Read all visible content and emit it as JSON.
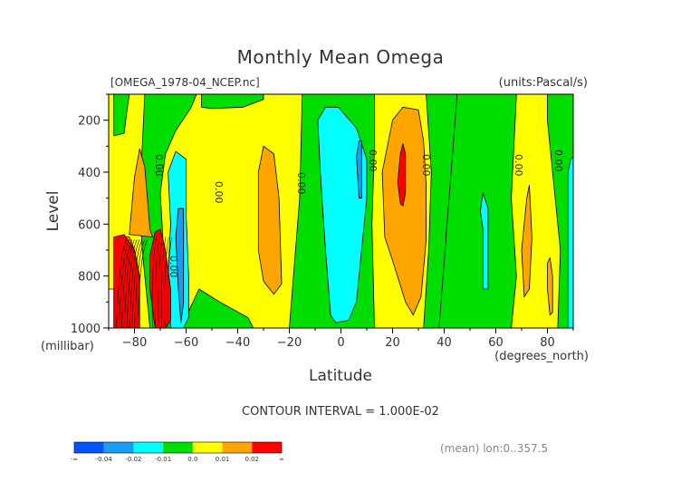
{
  "chart_data": {
    "type": "heatmap",
    "title": "Monthly Mean Omega",
    "file_label": "[OMEGA_1978-04_NCEP.nc]",
    "units_label": "(units:Pascal/s)",
    "xlabel": "Latitude",
    "xunits": "(degrees_north)",
    "ylabel": "Level",
    "yunits": "(millibar)",
    "xlim": [
      -90,
      90
    ],
    "ylim": [
      1000,
      100
    ],
    "xticks": [
      -80,
      -60,
      -40,
      -20,
      0,
      20,
      40,
      60,
      80
    ],
    "yticks": [
      200,
      400,
      600,
      800,
      1000
    ],
    "contour_interval_text": "CONTOUR INTERVAL = 1.000E-02",
    "contour_labels": [
      "0.00",
      "0.00",
      "0.00",
      "0.00",
      "0.00",
      "0.00",
      "0.00",
      "0.00"
    ],
    "mean_label": "(mean) lon:0..357.5",
    "colorbar": {
      "colors": [
        "#0055ff",
        "#1a9cf0",
        "#00ffff",
        "#00dd00",
        "#ffff00",
        "#ffa500",
        "#ff0000"
      ],
      "labels": [
        "-∞",
        "-0.04",
        "-0.02",
        "-0.01",
        "0.0",
        "0.01",
        "0.02",
        "∞"
      ]
    },
    "regions": [
      {
        "level": "0.01",
        "color": "#ffff00",
        "pts": [
          [
            -90,
            1000
          ],
          [
            -90,
            100
          ],
          [
            90,
            100
          ],
          [
            90,
            1000
          ]
        ]
      },
      {
        "level": "0.0",
        "color": "#00dd00",
        "pts": [
          [
            -88,
            100
          ],
          [
            -82,
            100
          ],
          [
            -83,
            170
          ],
          [
            -84,
            250
          ],
          [
            -88,
            260
          ]
        ]
      },
      {
        "level": "0.0",
        "color": "#00dd00",
        "pts": [
          [
            -76,
            100
          ],
          [
            -56,
            100
          ],
          [
            -58,
            150
          ],
          [
            -64,
            240
          ],
          [
            -68,
            330
          ],
          [
            -70,
            480
          ],
          [
            -69,
            650
          ],
          [
            -68,
            800
          ],
          [
            -64,
            950
          ],
          [
            -60,
            1000
          ],
          [
            -74,
            1000
          ],
          [
            -77,
            700
          ],
          [
            -78,
            500
          ],
          [
            -77,
            300
          ]
        ]
      },
      {
        "level": "0.0",
        "color": "#00dd00",
        "pts": [
          [
            -54,
            100
          ],
          [
            -30,
            100
          ],
          [
            -30,
            120
          ],
          [
            -38,
            150
          ],
          [
            -50,
            155
          ],
          [
            -54,
            150
          ]
        ]
      },
      {
        "level": "0.0",
        "color": "#00dd00",
        "pts": [
          [
            -62,
            1000
          ],
          [
            -55,
            850
          ],
          [
            -47,
            900
          ],
          [
            -36,
            960
          ],
          [
            -34,
            1000
          ]
        ]
      },
      {
        "level": "0.0",
        "color": "#00dd00",
        "pts": [
          [
            -20,
            1000
          ],
          [
            -16,
            500
          ],
          [
            -15,
            100
          ],
          [
            13,
            100
          ],
          [
            13,
            300
          ],
          [
            12,
            600
          ],
          [
            13,
            1000
          ]
        ]
      },
      {
        "level": "0.0",
        "color": "#00dd00",
        "pts": [
          [
            33,
            100
          ],
          [
            48,
            100
          ],
          [
            46,
            150
          ],
          [
            45,
            300
          ],
          [
            41,
            600
          ],
          [
            40,
            800
          ],
          [
            38,
            1000
          ],
          [
            32,
            1000
          ],
          [
            34,
            700
          ],
          [
            35,
            400
          ]
        ]
      },
      {
        "level": "0.0",
        "color": "#00dd00",
        "pts": [
          [
            38,
            1000
          ],
          [
            45,
            100
          ],
          [
            68,
            100
          ],
          [
            67,
            300
          ],
          [
            66,
            500
          ],
          [
            68,
            800
          ],
          [
            66,
            1000
          ]
        ]
      },
      {
        "level": "0.0",
        "color": "#00dd00",
        "pts": [
          [
            80,
            100
          ],
          [
            90,
            100
          ],
          [
            90,
            1000
          ],
          [
            84,
            1000
          ],
          [
            85,
            700
          ],
          [
            82,
            400
          ],
          [
            80,
            200
          ]
        ]
      },
      {
        "level": "0.02",
        "color": "#ffa500",
        "pts": [
          [
            -82,
            640
          ],
          [
            -80,
            420
          ],
          [
            -78,
            310
          ],
          [
            -76,
            380
          ],
          [
            -74,
            620
          ],
          [
            -73,
            650
          ]
        ]
      },
      {
        "level": "0.02",
        "color": "#ffa500",
        "pts": [
          [
            -32,
            700
          ],
          [
            -32,
            400
          ],
          [
            -30,
            300
          ],
          [
            -26,
            330
          ],
          [
            -24,
            500
          ],
          [
            -23,
            830
          ],
          [
            -26,
            870
          ],
          [
            -30,
            820
          ]
        ]
      },
      {
        "level": "0.02",
        "color": "#ffa500",
        "pts": [
          [
            17,
            650
          ],
          [
            16,
            400
          ],
          [
            20,
            200
          ],
          [
            24,
            150
          ],
          [
            30,
            160
          ],
          [
            32,
            280
          ],
          [
            33,
            450
          ],
          [
            33,
            660
          ],
          [
            31,
            880
          ],
          [
            28,
            950
          ],
          [
            25,
            900
          ],
          [
            20,
            740
          ]
        ]
      },
      {
        "level": "0.02",
        "color": "#ffa500",
        "pts": [
          [
            71,
            880
          ],
          [
            70,
            700
          ],
          [
            72,
            500
          ],
          [
            73,
            450
          ],
          [
            74,
            650
          ],
          [
            73,
            850
          ]
        ]
      },
      {
        "level": "0.02",
        "color": "#ffa500",
        "pts": [
          [
            80,
            850
          ],
          [
            80,
            750
          ],
          [
            81,
            730
          ],
          [
            82,
            800
          ],
          [
            82,
            940
          ],
          [
            81,
            950
          ]
        ]
      },
      {
        "level": "0.02",
        "color": "#ffa500",
        "pts": [
          [
            -86,
            650
          ],
          [
            -82,
            650
          ],
          [
            -80,
            700
          ],
          [
            -80,
            880
          ],
          [
            -80,
            1000
          ],
          [
            -86,
            1000
          ]
        ]
      },
      {
        "level": "-0.01",
        "color": "#00ffff",
        "pts": [
          [
            -66,
            600
          ],
          [
            -67,
            400
          ],
          [
            -64,
            320
          ],
          [
            -60,
            350
          ],
          [
            -60,
            560
          ],
          [
            -59,
            800
          ],
          [
            -59,
            960
          ],
          [
            -61,
            1000
          ],
          [
            -66,
            1000
          ],
          [
            -67,
            800
          ]
        ]
      },
      {
        "level": "-0.01",
        "color": "#00ffff",
        "pts": [
          [
            -4,
            950
          ],
          [
            -6,
            700
          ],
          [
            -8,
            400
          ],
          [
            -9,
            200
          ],
          [
            -6,
            150
          ],
          [
            -1,
            150
          ],
          [
            6,
            230
          ],
          [
            10,
            350
          ],
          [
            10,
            500
          ],
          [
            8,
            700
          ],
          [
            6,
            900
          ],
          [
            3,
            970
          ],
          [
            -2,
            980
          ]
        ]
      },
      {
        "level": "-0.01",
        "color": "#00ffff",
        "pts": [
          [
            55,
            620
          ],
          [
            54,
            550
          ],
          [
            55,
            480
          ],
          [
            57,
            540
          ],
          [
            57,
            620
          ],
          [
            57,
            850
          ],
          [
            55,
            850
          ]
        ]
      },
      {
        "level": "-0.01",
        "color": "#00ffff",
        "pts": [
          [
            88,
            1000
          ],
          [
            88,
            400
          ],
          [
            89,
            350
          ],
          [
            90,
            340
          ],
          [
            90,
            1000
          ]
        ]
      },
      {
        "level": "-0.02",
        "color": "#1a9cf0",
        "pts": [
          [
            -63,
            850
          ],
          [
            -64,
            650
          ],
          [
            -63,
            540
          ],
          [
            -61,
            540
          ],
          [
            -61,
            700
          ],
          [
            -61,
            900
          ],
          [
            -62,
            980
          ]
        ]
      },
      {
        "level": "-0.02",
        "color": "#1a9cf0",
        "pts": [
          [
            7,
            500
          ],
          [
            6,
            340
          ],
          [
            7,
            280
          ],
          [
            8,
            280
          ],
          [
            8,
            500
          ]
        ]
      },
      {
        "level": "0.03",
        "color": "#ff0000",
        "pts": [
          [
            -72,
            1000
          ],
          [
            -74,
            850
          ],
          [
            -74,
            720
          ],
          [
            -72,
            630
          ],
          [
            -70,
            620
          ],
          [
            -68,
            700
          ],
          [
            -66,
            850
          ],
          [
            -66,
            970
          ],
          [
            -68,
            1000
          ]
        ]
      },
      {
        "level": "0.03",
        "color": "#ff0000",
        "pts": [
          [
            22,
            440
          ],
          [
            23,
            330
          ],
          [
            24,
            290
          ],
          [
            25,
            330
          ],
          [
            25,
            480
          ],
          [
            24,
            530
          ],
          [
            23,
            520
          ]
        ]
      },
      {
        "level": "0.03",
        "color": "#ff0000",
        "pts": [
          [
            -88,
            650
          ],
          [
            -84,
            640
          ],
          [
            -80,
            700
          ],
          [
            -78,
            800
          ],
          [
            -78,
            1000
          ],
          [
            -88,
            1000
          ]
        ]
      },
      {
        "level": "white",
        "color": "#ffffff",
        "pts": [
          [
            -90,
            850
          ],
          [
            -88,
            850
          ],
          [
            -88,
            1000
          ],
          [
            -90,
            1000
          ]
        ]
      }
    ]
  }
}
